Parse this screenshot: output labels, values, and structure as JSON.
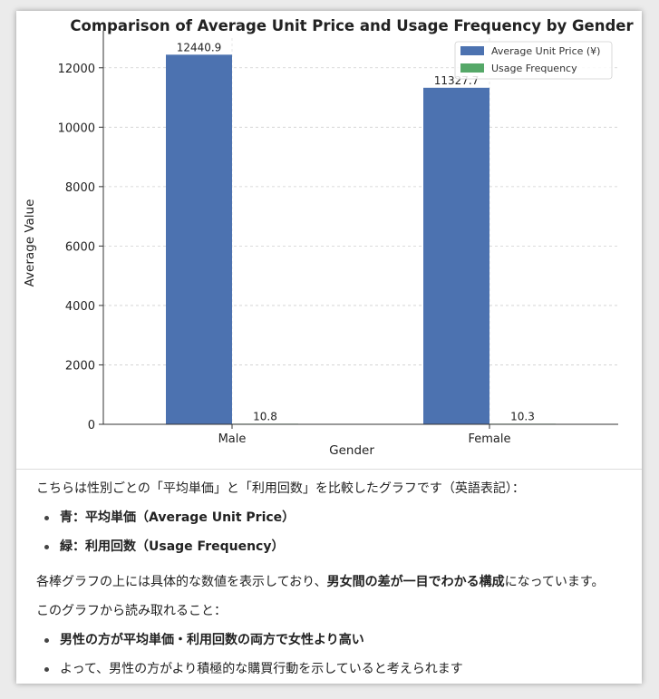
{
  "chart_data": {
    "type": "bar",
    "title": "Comparison of Average Unit Price and Usage Frequency by Gender",
    "xlabel": "Gender",
    "ylabel": "Average Value",
    "categories": [
      "Male",
      "Female"
    ],
    "ylim": [
      0,
      13000
    ],
    "yticks": [
      0,
      2000,
      4000,
      6000,
      8000,
      10000,
      12000
    ],
    "grid": "horizontal-dashed",
    "legend_position": "top-right",
    "series": [
      {
        "name": "Average Unit Price (¥)",
        "values": [
          12440.9,
          11327.7
        ],
        "labels": [
          "12440.9",
          "11327.7"
        ],
        "color": "#4c72b0"
      },
      {
        "name": "Usage Frequency",
        "values": [
          10.8,
          10.3
        ],
        "labels": [
          "10.8",
          "10.3"
        ],
        "color": "#55a868"
      }
    ]
  },
  "text": {
    "intro": "こちらは性別ごとの「平均単価」と「利用回数」を比較したグラフです（英語表記）：",
    "bullet_blue": "青：平均単価（Average Unit Price）",
    "bullet_green": "緑：利用回数（Usage Frequency）",
    "para2_a": "各棒グラフの上には具体的な数値を表示しており、",
    "para2_b": "男女間の差が一目でわかる構成",
    "para2_c": "になっています。",
    "para3": "このグラフから読み取れること：",
    "finding1": "男性の方が平均単価・利用回数の両方で女性より高い",
    "finding2": "よって、男性の方がより積極的な購買行動を示していると考えられます"
  }
}
